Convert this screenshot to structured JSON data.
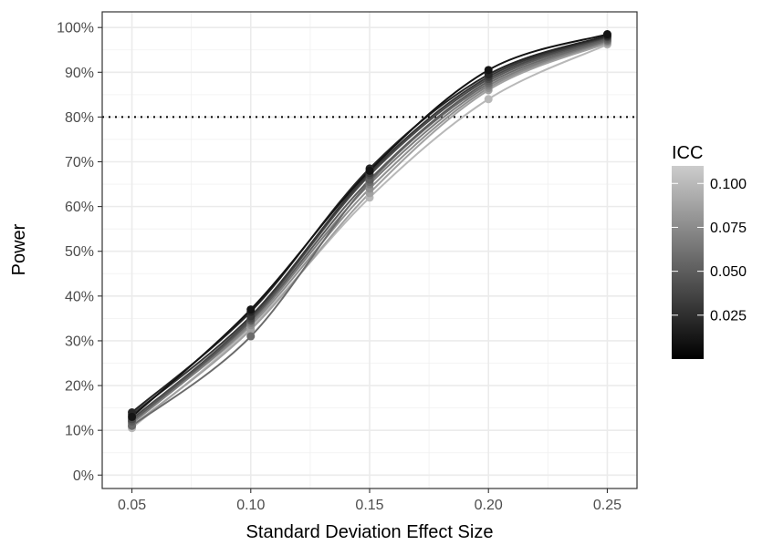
{
  "chart_data": {
    "type": "line",
    "title": "",
    "xlabel": "Standard Deviation Effect Size",
    "ylabel": "Power",
    "x": [
      0.05,
      0.1,
      0.15,
      0.2,
      0.25
    ],
    "x_tick_labels": [
      "0.05",
      "0.10",
      "0.15",
      "0.20",
      "0.25"
    ],
    "xlim": [
      0.0375,
      0.2625
    ],
    "y_ticks": [
      0,
      0.1,
      0.2,
      0.3,
      0.4,
      0.5,
      0.6,
      0.7,
      0.8,
      0.9,
      1.0
    ],
    "y_tick_labels": [
      "0%",
      "10%",
      "20%",
      "30%",
      "40%",
      "50%",
      "60%",
      "70%",
      "80%",
      "90%",
      "100%"
    ],
    "ylim": [
      -0.03,
      1.035
    ],
    "reference_line": {
      "y": 0.8,
      "style": "dotted"
    },
    "grid": true,
    "theme": "black-and-white with gray grid",
    "legend": {
      "title": "ICC",
      "position": "right",
      "type": "continuous colorbar",
      "range": [
        0.0,
        0.11
      ],
      "low_color": "#000000",
      "high_color": "#cccccc",
      "ticks": [
        0.025,
        0.05,
        0.075,
        0.1
      ],
      "tick_labels": [
        "0.025",
        "0.050",
        "0.075",
        "0.100"
      ]
    },
    "series": [
      {
        "icc": 0.01,
        "color": "#141414",
        "values": [
          0.13,
          0.37,
          0.68,
          0.905,
          0.985
        ]
      },
      {
        "icc": 0.02,
        "color": "#262626",
        "values": [
          0.14,
          0.365,
          0.685,
          0.895,
          0.982
        ]
      },
      {
        "icc": 0.03,
        "color": "#383838",
        "values": [
          0.135,
          0.355,
          0.675,
          0.89,
          0.98
        ]
      },
      {
        "icc": 0.04,
        "color": "#4a4a4a",
        "values": [
          0.125,
          0.35,
          0.67,
          0.885,
          0.978
        ]
      },
      {
        "icc": 0.05,
        "color": "#5c5c5c",
        "values": [
          0.12,
          0.345,
          0.66,
          0.88,
          0.975
        ]
      },
      {
        "icc": 0.06,
        "color": "#6b6b6b",
        "values": [
          0.11,
          0.31,
          0.655,
          0.875,
          0.972
        ]
      },
      {
        "icc": 0.07,
        "color": "#7d7d7d",
        "values": [
          0.115,
          0.34,
          0.65,
          0.87,
          0.97
        ]
      },
      {
        "icc": 0.08,
        "color": "#8f8f8f",
        "values": [
          0.12,
          0.335,
          0.64,
          0.865,
          0.968
        ]
      },
      {
        "icc": 0.09,
        "color": "#a1a1a1",
        "values": [
          0.11,
          0.325,
          0.63,
          0.86,
          0.965
        ]
      },
      {
        "icc": 0.1,
        "color": "#b8b8b8",
        "values": [
          0.105,
          0.33,
          0.62,
          0.84,
          0.962
        ]
      }
    ]
  }
}
